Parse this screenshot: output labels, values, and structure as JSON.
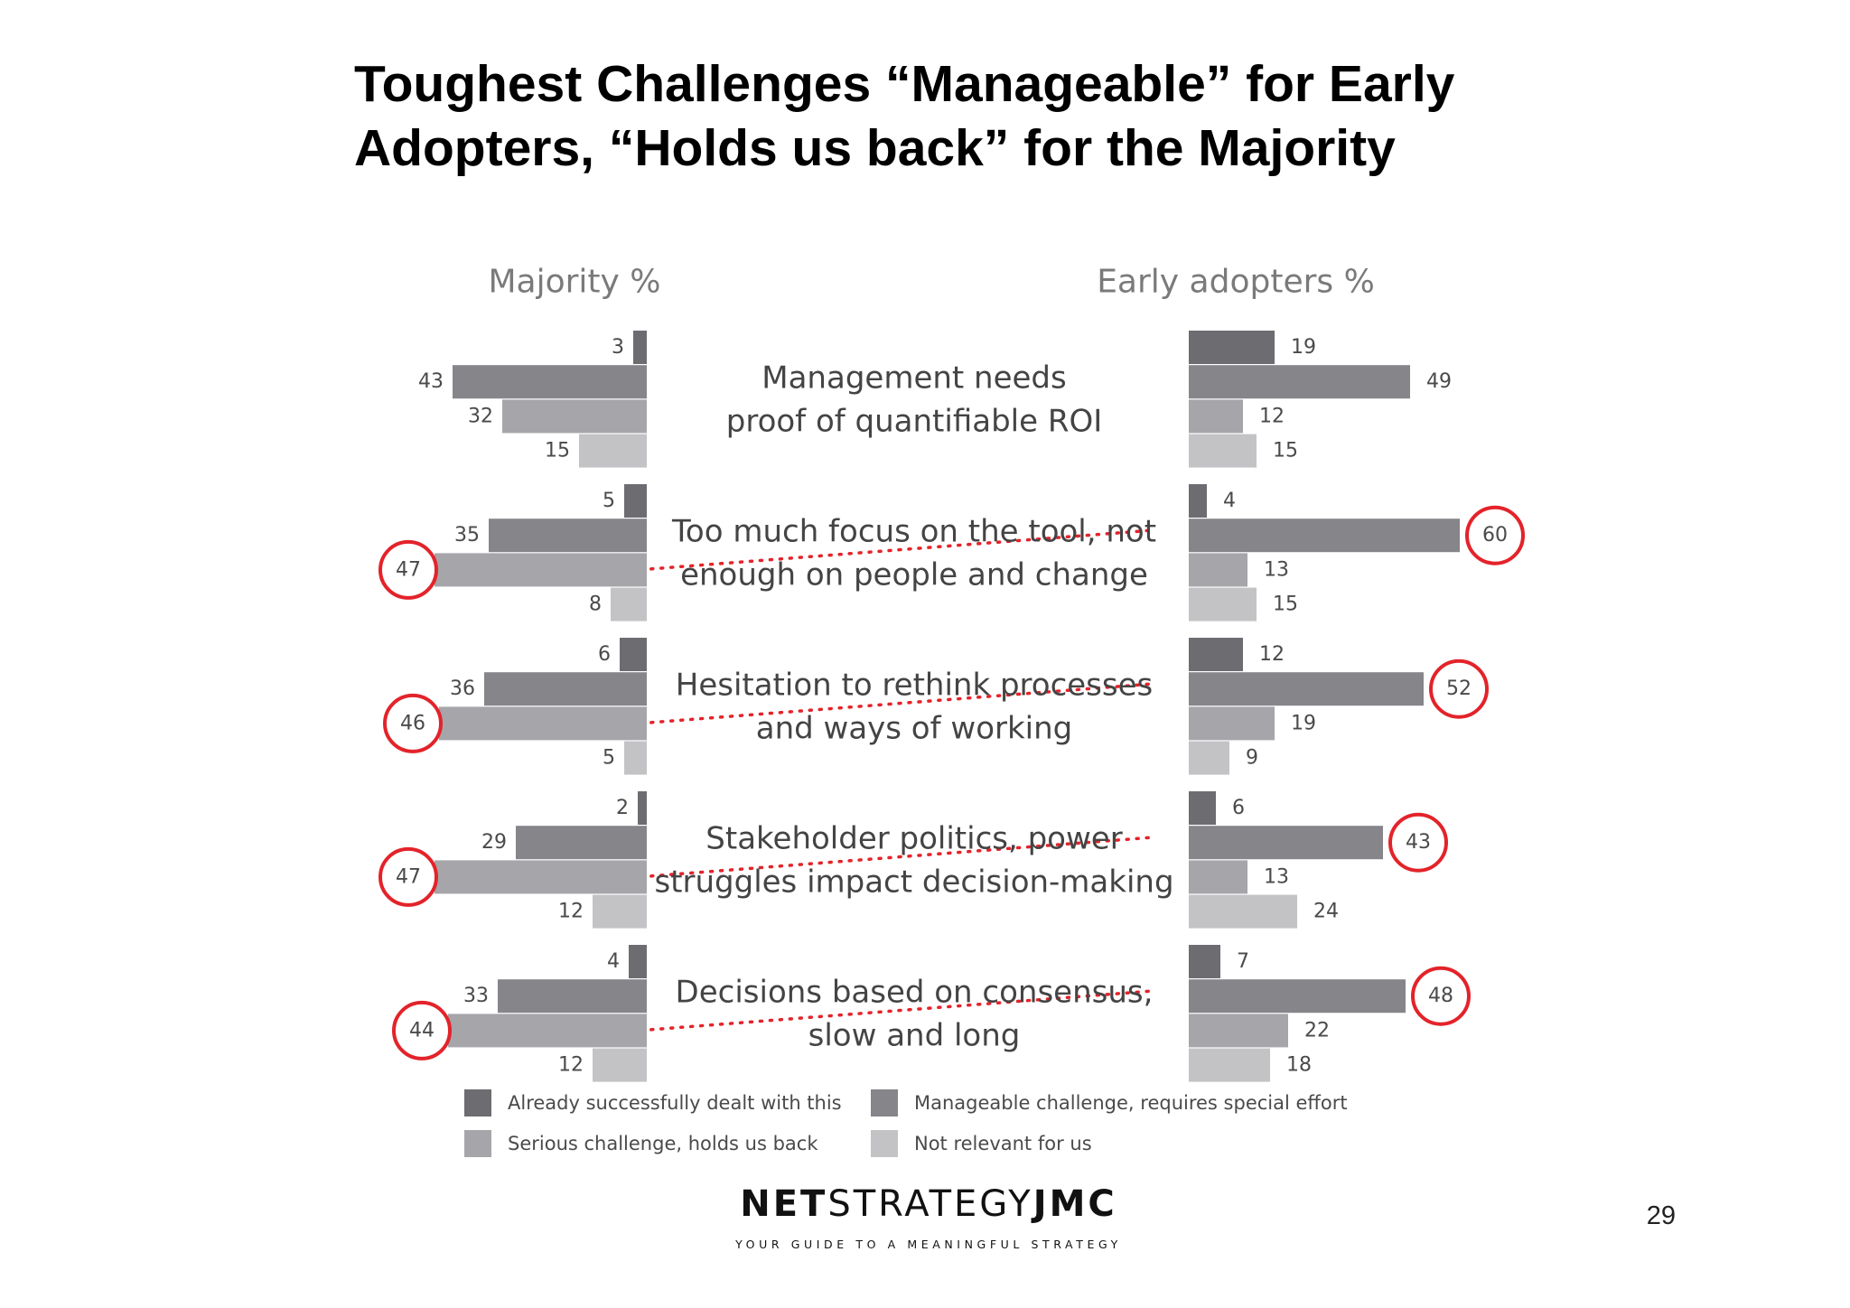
{
  "title": {
    "line1": "Toughest Challenges “Manageable” for Early",
    "line2": "Adopters, “Holds us back” for the Majority"
  },
  "colors": {
    "dealt": "#6d6c71",
    "manageable": "#86858a",
    "serious": "#a6a5a9",
    "not_relevant": "#c3c2c5",
    "highlight_circle": "#e3232a",
    "text": "#4a4a4a"
  },
  "chart_data": {
    "type": "bar",
    "orientation": "horizontal-butterfly",
    "panels": [
      "Majority %",
      "Early adopters %"
    ],
    "categories": [
      [
        "Management needs",
        "proof of quantifiable ROI"
      ],
      [
        "Too much focus on the tool, not",
        "enough on people and change"
      ],
      [
        "Hesitation to rethink  processes",
        "and  ways of working"
      ],
      [
        "Stakeholder politics, power",
        "struggles impact decision-making"
      ],
      [
        "Decisions based on consensus,",
        "slow and long"
      ]
    ],
    "series": [
      {
        "name": "Already successfully dealt with this",
        "color_key": "dealt",
        "majority": [
          3,
          5,
          6,
          2,
          4
        ],
        "early_adopters": [
          19,
          4,
          12,
          6,
          7
        ]
      },
      {
        "name": "Manageable challenge, requires special effort",
        "color_key": "manageable",
        "majority": [
          43,
          35,
          36,
          29,
          33
        ],
        "early_adopters": [
          49,
          60,
          52,
          43,
          48
        ]
      },
      {
        "name": "Serious challenge, holds us back",
        "color_key": "serious",
        "majority": [
          32,
          47,
          46,
          47,
          44
        ],
        "early_adopters": [
          12,
          13,
          19,
          13,
          22
        ]
      },
      {
        "name": "Not relevant for us",
        "color_key": "not_relevant",
        "majority": [
          15,
          8,
          5,
          12,
          12
        ],
        "early_adopters": [
          15,
          15,
          9,
          24,
          18
        ]
      }
    ],
    "highlights": {
      "majority_series": "Serious challenge, holds us back",
      "majority_groups": [
        1,
        2,
        3,
        4
      ],
      "early_adopters_series": "Manageable challenge, requires special effort",
      "early_adopters_groups": [
        1,
        2,
        3,
        4
      ]
    },
    "legend": {
      "placement": "bottom",
      "order": [
        "Already successfully dealt with this",
        "Manageable challenge, requires special effort",
        "Serious challenge, holds us back",
        "Not relevant for us"
      ]
    }
  },
  "brand": {
    "name_part1": "NET",
    "name_part2": "STRATEGY",
    "name_part3": "JMC",
    "tagline": "YOUR GUIDE TO A MEANINGFUL STRATEGY"
  },
  "page_number": "29"
}
